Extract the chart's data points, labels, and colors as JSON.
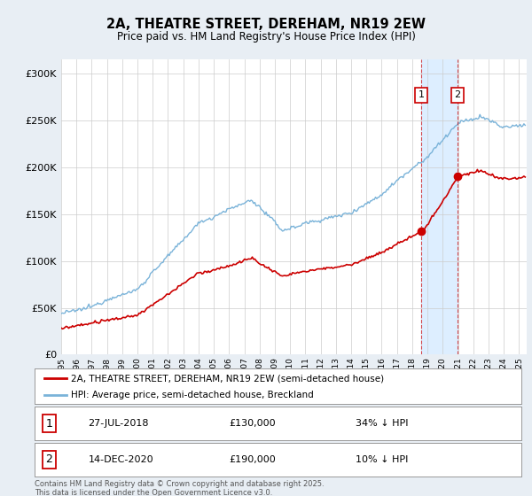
{
  "title_line1": "2A, THEATRE STREET, DEREHAM, NR19 2EW",
  "title_line2": "Price paid vs. HM Land Registry's House Price Index (HPI)",
  "background_color": "#e8eef4",
  "plot_bg_color": "#ffffff",
  "hpi_color": "#7ab3d9",
  "price_color": "#cc0000",
  "shade_color": "#ddeeff",
  "vline_color": "#cc0000",
  "marker1_date_num": 2018.58,
  "marker1_label": "1",
  "marker1_price": 130000,
  "marker1_text": "27-JUL-2018",
  "marker1_pct": "34% ↓ HPI",
  "marker2_date_num": 2020.96,
  "marker2_label": "2",
  "marker2_price": 190000,
  "marker2_text": "14-DEC-2020",
  "marker2_pct": "10% ↓ HPI",
  "legend_entry1": "2A, THEATRE STREET, DEREHAM, NR19 2EW (semi-detached house)",
  "legend_entry2": "HPI: Average price, semi-detached house, Breckland",
  "footnote": "Contains HM Land Registry data © Crown copyright and database right 2025.\nThis data is licensed under the Open Government Licence v3.0.",
  "xmin": 1995,
  "xmax": 2025.5,
  "ymin": 0,
  "ymax": 315000
}
